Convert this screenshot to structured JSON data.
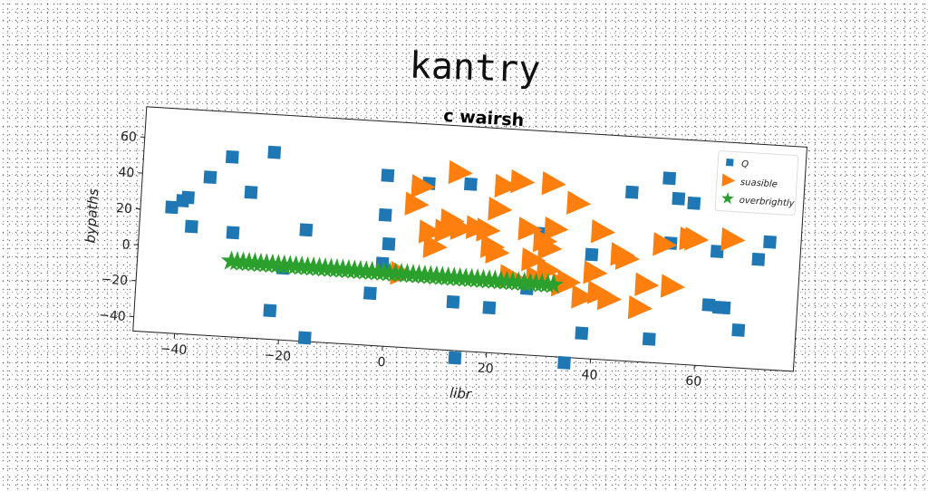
{
  "title": "kantry",
  "chart_data": {
    "type": "scatter",
    "title": "c wairsh",
    "xlabel": "libr",
    "ylabel": "bypaths",
    "xlim": [
      -48,
      79
    ],
    "ylim": [
      -48,
      77
    ],
    "xticks": [
      -40,
      -20,
      0,
      20,
      40,
      60
    ],
    "yticks": [
      -40,
      -20,
      0,
      20,
      40,
      60
    ],
    "grid": false,
    "legend_position": "top-right",
    "series": [
      {
        "name": "Q",
        "marker": "square",
        "color": "#1f77b4",
        "points": [
          [
            -42,
            22
          ],
          [
            -40,
            26
          ],
          [
            -39,
            28
          ],
          [
            -38,
            12
          ],
          [
            -35,
            40
          ],
          [
            -31,
            52
          ],
          [
            -30,
            10
          ],
          [
            -27,
            33
          ],
          [
            -23,
            56
          ],
          [
            -22,
            -32
          ],
          [
            -20,
            -8
          ],
          [
            -16,
            14
          ],
          [
            -15,
            -46
          ],
          [
            -3,
            -19
          ],
          [
            -1,
            47
          ],
          [
            -1,
            25
          ],
          [
            -1,
            -2
          ],
          [
            0,
            9
          ],
          [
            7,
            44
          ],
          [
            13,
            -21
          ],
          [
            14,
            -52
          ],
          [
            15,
            45
          ],
          [
            20,
            -23
          ],
          [
            27,
            -11
          ],
          [
            29,
            20
          ],
          [
            35,
            -51
          ],
          [
            38,
            -34
          ],
          [
            39,
            10
          ],
          [
            44,
            9
          ],
          [
            46,
            46
          ],
          [
            51,
            -35
          ],
          [
            53,
            55
          ],
          [
            54,
            19
          ],
          [
            55,
            44
          ],
          [
            58,
            42
          ],
          [
            62,
            -14
          ],
          [
            63,
            16
          ],
          [
            64,
            -15
          ],
          [
            65,
            -15
          ],
          [
            68,
            -27
          ],
          [
            71,
            13
          ],
          [
            73,
            23
          ]
        ]
      },
      {
        "name": "suasible",
        "marker": "triangle-right",
        "color": "#ff7f0e",
        "points": [
          [
            3,
            -7
          ],
          [
            5,
            32
          ],
          [
            6,
            42
          ],
          [
            8,
            17
          ],
          [
            9,
            9
          ],
          [
            11,
            18
          ],
          [
            12,
            24
          ],
          [
            13,
            51
          ],
          [
            14,
            20
          ],
          [
            17,
            21
          ],
          [
            19,
            20
          ],
          [
            20,
            11
          ],
          [
            21,
            8
          ],
          [
            21,
            32
          ],
          [
            22,
            45
          ],
          [
            24,
            -5
          ],
          [
            25,
            48
          ],
          [
            27,
            22
          ],
          [
            28,
            5
          ],
          [
            29,
            -5
          ],
          [
            30,
            16
          ],
          [
            31,
            0
          ],
          [
            31,
            12
          ],
          [
            31,
            48
          ],
          [
            32,
            23
          ],
          [
            34,
            -8
          ],
          [
            35,
            -6
          ],
          [
            36,
            38
          ],
          [
            38,
            -14
          ],
          [
            40,
            0
          ],
          [
            41,
            -11
          ],
          [
            41,
            23
          ],
          [
            43,
            -14
          ],
          [
            45,
            11
          ],
          [
            46,
            9
          ],
          [
            49,
            -18
          ],
          [
            50,
            -5
          ],
          [
            53,
            18
          ],
          [
            55,
            -5
          ],
          [
            58,
            22
          ],
          [
            59,
            22
          ],
          [
            66,
            23
          ]
        ]
      },
      {
        "name": "overbrightly",
        "marker": "star",
        "color": "#2ca02c",
        "x_range": [
          -30,
          32
        ],
        "y_range": [
          -6,
          -8
        ],
        "count": 56
      }
    ]
  }
}
